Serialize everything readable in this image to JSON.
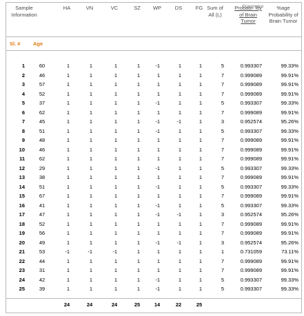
{
  "header": {
    "sample_information": "Sample Information",
    "columns": [
      "HA",
      "VN",
      "VC",
      "SZ",
      "WP",
      "DS",
      "FG"
    ],
    "sum_of_all": "Sum of All (L)",
    "probability": "Probabi- lity of Brain Tumor",
    "probability_overlay": "Occurrence",
    "percentage": "%age Probability of Brain Tumor"
  },
  "subheader": {
    "sl": "Sl. #",
    "age": "Age"
  },
  "rows": [
    {
      "sl": "1",
      "age": "60",
      "v": [
        "1",
        "1",
        "1",
        "1",
        "-1",
        "1",
        "1"
      ],
      "sum": "5",
      "prob": "0.993307",
      "pct": "99.33%"
    },
    {
      "sl": "2",
      "age": "46",
      "v": [
        "1",
        "1",
        "1",
        "1",
        "1",
        "1",
        "1"
      ],
      "sum": "7",
      "prob": "0.999089",
      "pct": "99.91%"
    },
    {
      "sl": "3",
      "age": "57",
      "v": [
        "1",
        "1",
        "1",
        "1",
        "1",
        "1",
        "1"
      ],
      "sum": "7",
      "prob": "0.999089",
      "pct": "99.91%"
    },
    {
      "sl": "4",
      "age": "52",
      "v": [
        "1",
        "1",
        "1",
        "1",
        "1",
        "1",
        "1"
      ],
      "sum": "7",
      "prob": "0.999089",
      "pct": "99.91%"
    },
    {
      "sl": "5",
      "age": "37",
      "v": [
        "1",
        "1",
        "1",
        "1",
        "-1",
        "1",
        "1"
      ],
      "sum": "5",
      "prob": "0.993307",
      "pct": "99.33%"
    },
    {
      "sl": "6",
      "age": "62",
      "v": [
        "1",
        "1",
        "1",
        "1",
        "1",
        "1",
        "1"
      ],
      "sum": "7",
      "prob": "0.999089",
      "pct": "99.91%"
    },
    {
      "sl": "7",
      "age": "45",
      "v": [
        "1",
        "1",
        "1",
        "1",
        "-1",
        "-1",
        "1"
      ],
      "sum": "3",
      "prob": "0.952574",
      "pct": "95.26%"
    },
    {
      "sl": "8",
      "age": "51",
      "v": [
        "1",
        "1",
        "1",
        "1",
        "-1",
        "1",
        "1"
      ],
      "sum": "5",
      "prob": "0.993307",
      "pct": "99.33%"
    },
    {
      "sl": "9",
      "age": "48",
      "v": [
        "1",
        "1",
        "1",
        "1",
        "1",
        "1",
        "1"
      ],
      "sum": "7",
      "prob": "0.999089",
      "pct": "99.91%"
    },
    {
      "sl": "10",
      "age": "46",
      "v": [
        "1",
        "1",
        "1",
        "1",
        "1",
        "1",
        "1"
      ],
      "sum": "7",
      "prob": "0.999089",
      "pct": "99.91%"
    },
    {
      "sl": "11",
      "age": "62",
      "v": [
        "1",
        "1",
        "1",
        "1",
        "1",
        "1",
        "1"
      ],
      "sum": "7",
      "prob": "0.999089",
      "pct": "99.91%"
    },
    {
      "sl": "12",
      "age": "29",
      "v": [
        "1",
        "1",
        "1",
        "1",
        "-1",
        "1",
        "1"
      ],
      "sum": "5",
      "prob": "0.993307",
      "pct": "99.33%"
    },
    {
      "sl": "13",
      "age": "38",
      "v": [
        "1",
        "1",
        "1",
        "1",
        "1",
        "1",
        "1"
      ],
      "sum": "7",
      "prob": "0.999089",
      "pct": "99.91%"
    },
    {
      "sl": "14",
      "age": "51",
      "v": [
        "1",
        "1",
        "1",
        "1",
        "-1",
        "1",
        "1"
      ],
      "sum": "5",
      "prob": "0.993307",
      "pct": "99.33%"
    },
    {
      "sl": "15",
      "age": "67",
      "v": [
        "1",
        "1",
        "1",
        "1",
        "1",
        "1",
        "1"
      ],
      "sum": "7",
      "prob": "0.999089",
      "pct": "99.91%"
    },
    {
      "sl": "16",
      "age": "41",
      "v": [
        "1",
        "1",
        "1",
        "1",
        "-1",
        "1",
        "1"
      ],
      "sum": "5",
      "prob": "0.993307",
      "pct": "99.33%"
    },
    {
      "sl": "17",
      "age": "47",
      "v": [
        "1",
        "1",
        "1",
        "1",
        "-1",
        "-1",
        "1"
      ],
      "sum": "3",
      "prob": "0.952574",
      "pct": "95.26%"
    },
    {
      "sl": "18",
      "age": "52",
      "v": [
        "1",
        "1",
        "1",
        "1",
        "1",
        "1",
        "1"
      ],
      "sum": "7",
      "prob": "0.999089",
      "pct": "99.91%"
    },
    {
      "sl": "19",
      "age": "56",
      "v": [
        "1",
        "1",
        "1",
        "1",
        "1",
        "1",
        "1"
      ],
      "sum": "7",
      "prob": "0.999089",
      "pct": "99.91%"
    },
    {
      "sl": "20",
      "age": "49",
      "v": [
        "1",
        "1",
        "1",
        "1",
        "-1",
        "-1",
        "1"
      ],
      "sum": "3",
      "prob": "0.952574",
      "pct": "95.26%"
    },
    {
      "sl": "21",
      "age": "53",
      "v": [
        "-1",
        "-1",
        "-1",
        "1",
        "1",
        "1",
        "1"
      ],
      "sum": "1",
      "prob": "0.731059",
      "pct": "73.11%"
    },
    {
      "sl": "22",
      "age": "44",
      "v": [
        "1",
        "1",
        "1",
        "1",
        "1",
        "1",
        "1"
      ],
      "sum": "7",
      "prob": "0.999089",
      "pct": "99.91%"
    },
    {
      "sl": "23",
      "age": "31",
      "v": [
        "1",
        "1",
        "1",
        "1",
        "1",
        "1",
        "1"
      ],
      "sum": "7",
      "prob": "0.999089",
      "pct": "99.91%"
    },
    {
      "sl": "24",
      "age": "42",
      "v": [
        "1",
        "1",
        "1",
        "1",
        "-1",
        "1",
        "1"
      ],
      "sum": "5",
      "prob": "0.993307",
      "pct": "99.33%"
    },
    {
      "sl": "25",
      "age": "39",
      "v": [
        "1",
        "1",
        "1",
        "1",
        "-1",
        "1",
        "1"
      ],
      "sum": "5",
      "prob": "0.993307",
      "pct": "99.33%"
    }
  ],
  "totals": [
    "24",
    "24",
    "24",
    "25",
    "14",
    "22",
    "25"
  ]
}
